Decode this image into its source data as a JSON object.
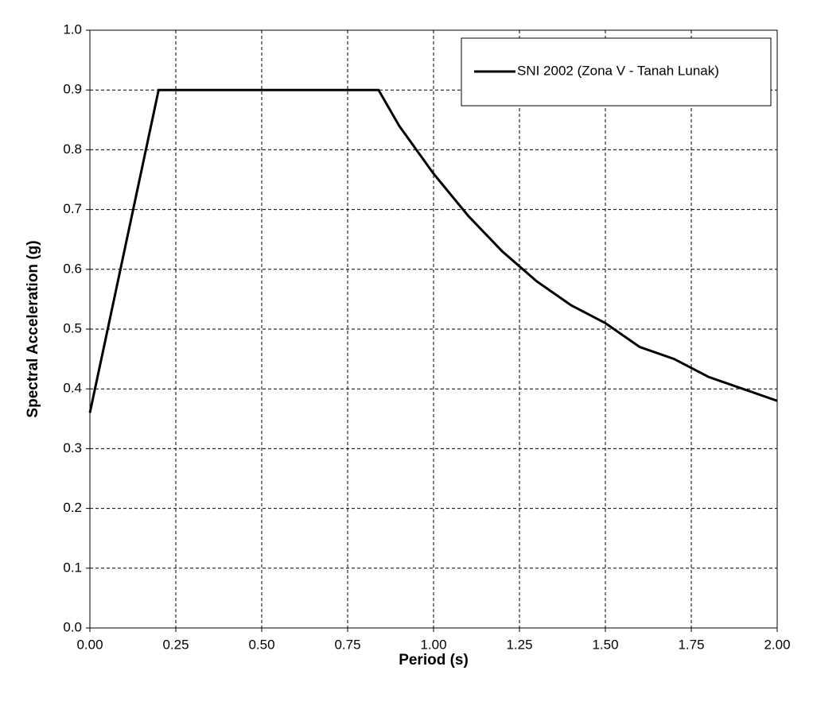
{
  "chart_data": {
    "type": "line",
    "x_label": "Period (s)",
    "y_label": "Spectral Acceleration (g)",
    "xlim": [
      0,
      2
    ],
    "ylim": [
      0,
      1
    ],
    "xticks": [
      {
        "value": 0,
        "label": "0.00"
      },
      0.25,
      {
        "value": 0.5,
        "label": "0.50"
      },
      0.75,
      {
        "value": 1,
        "label": "1.00"
      },
      1.25,
      {
        "value": 1.5,
        "label": "1.50"
      },
      1.75,
      {
        "value": 2,
        "label": "2.00"
      }
    ],
    "yticks": [
      {
        "value": 0,
        "label": "0.0"
      },
      0.1,
      0.2,
      0.3,
      0.4,
      0.5,
      0.6,
      0.7,
      0.8,
      0.9,
      {
        "value": 1,
        "label": "1.0"
      }
    ],
    "grid": true,
    "legend": "upper-right",
    "x": [
      0,
      0.2,
      0.84,
      0.86,
      0.9,
      0.95,
      1.0,
      1.1,
      1.2,
      1.3,
      1.4,
      1.5,
      1.6,
      1.7,
      1.8,
      1.9,
      2.0
    ],
    "series": [
      {
        "name": "SNI 2002 (Zona V - Tanah Lunak)",
        "color": "#000000",
        "values": [
          0.36,
          0.9,
          0.9,
          0.88,
          0.84,
          0.8,
          0.76,
          0.69,
          0.63,
          0.58,
          0.54,
          0.51,
          0.47,
          0.45,
          0.42,
          0.4,
          0.38
        ]
      }
    ]
  }
}
